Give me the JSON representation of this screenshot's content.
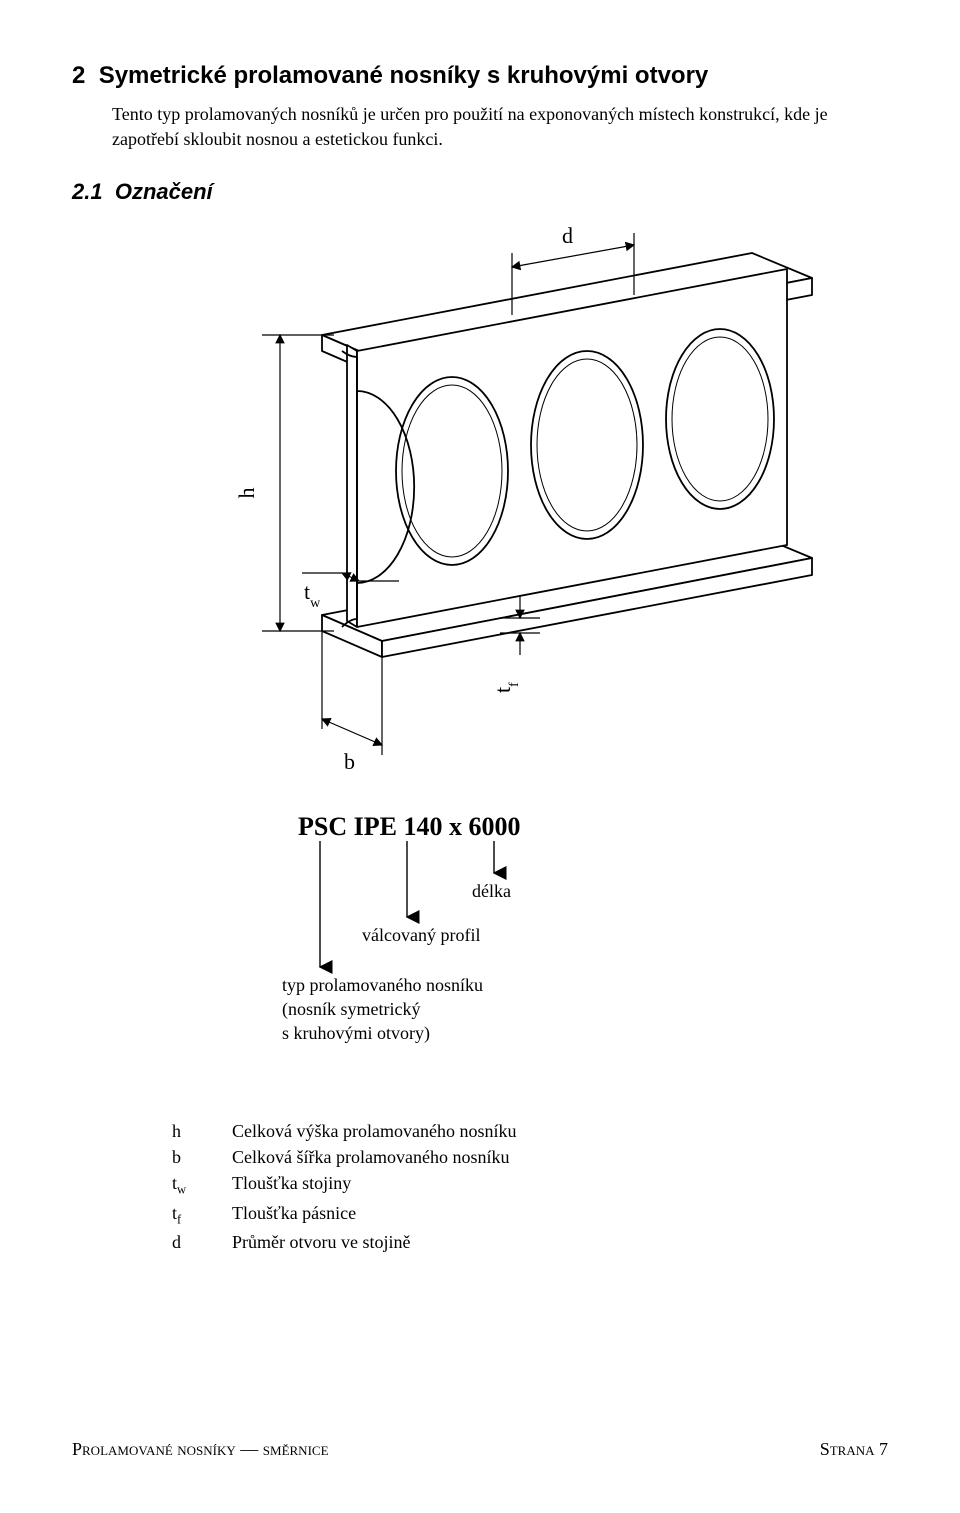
{
  "section": {
    "number": "2",
    "title": "Symetrické prolamované nosníky s kruhovými otvory",
    "body": "Tento typ prolamovaných nosníků je určen pro použití na exponovaných místech konstrukcí, kde je zapotřebí skloubit nosnou a estetickou funkci."
  },
  "subsection": {
    "number": "2.1",
    "title": "Označení"
  },
  "diagram": {
    "labels": {
      "h": "h",
      "b": "b",
      "d": "d",
      "tw": "t",
      "tw_sub": "w",
      "tf": "t",
      "tf_sub": "f"
    },
    "stroke": "#000000",
    "stroke_thin": 1.2,
    "stroke_med": 1.8
  },
  "designation": {
    "code": "PSC IPE 140 x 6000",
    "arrows": {
      "delka": "délka",
      "profil": "válcovaný profil",
      "typ_line1": "typ prolamovaného nosníku",
      "typ_line2": "(nosník symetrický",
      "typ_line3": "s kruhovými otvory)"
    }
  },
  "symbols": [
    {
      "sym_html": "h",
      "desc": "Celková výška prolamovaného nosníku"
    },
    {
      "sym_html": "b",
      "desc": "Celková šířka prolamovaného nosníku"
    },
    {
      "sym_html": "t<sub>w</sub>",
      "desc": "Tloušťka stojiny"
    },
    {
      "sym_html": "t<sub>f</sub>",
      "desc": "Tloušťka pásnice"
    },
    {
      "sym_html": "d",
      "desc": "Průměr otvoru ve stojině"
    }
  ],
  "footer": {
    "left_caps": "Prolamované nosníky — směrnice",
    "right_caps_prefix": "Strana",
    "page": "7"
  }
}
